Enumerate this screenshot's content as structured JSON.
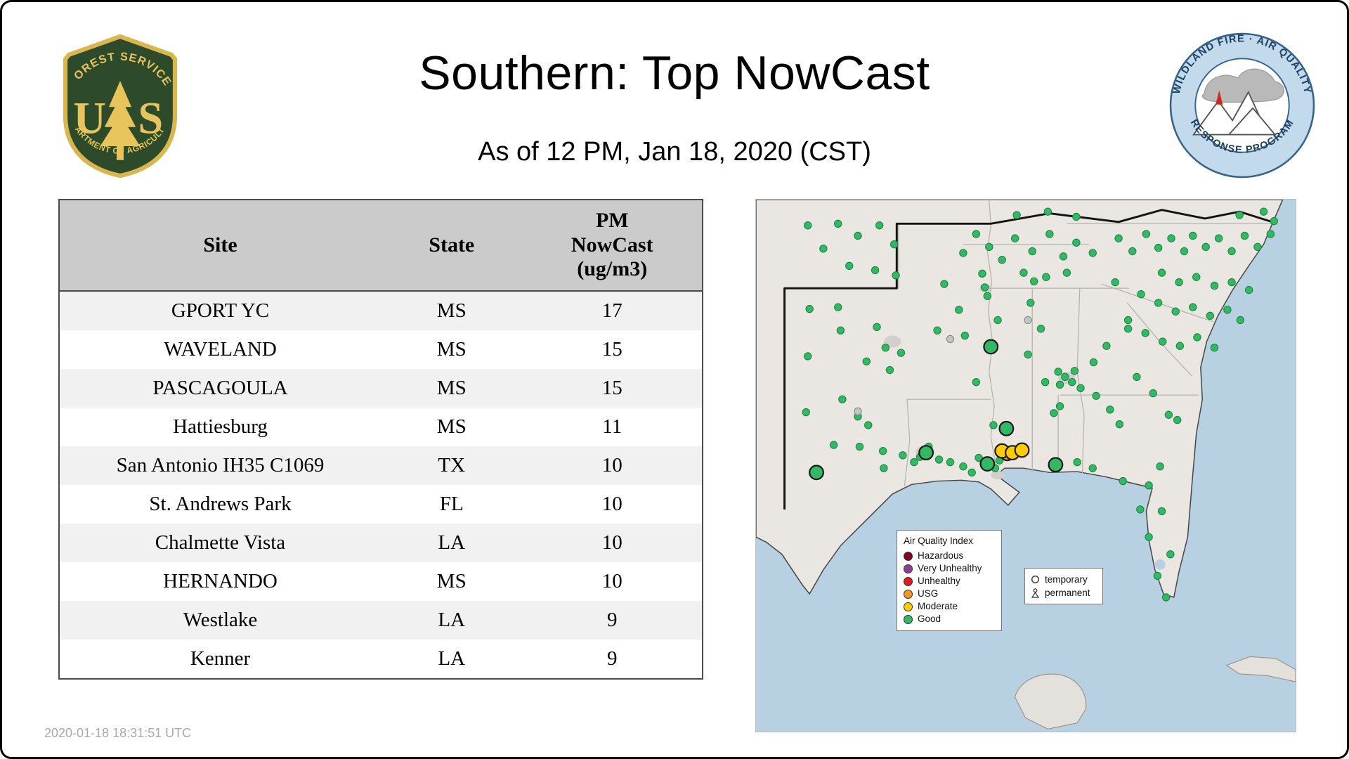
{
  "header": {
    "title": "Southern: Top NowCast",
    "subtitle": "As of 12 PM, Jan 18, 2020 (CST)",
    "usfs_logo": {
      "arc_top": "FOREST SERVICE",
      "letter_left": "U",
      "letter_right": "S",
      "arc_bottom": "DEPARTMENT OF AGRICULTURE"
    },
    "program_logo": {
      "arc_top": "WILDLAND FIRE · AIR QUALITY",
      "arc_bottom": "RESPONSE PROGRAM"
    }
  },
  "table": {
    "columns": {
      "site": "Site",
      "state": "State",
      "pm": "PM\nNowCast\n(ug/m3)"
    },
    "rows": [
      {
        "site": "GPORT YC",
        "state": "MS",
        "value": "17"
      },
      {
        "site": "WAVELAND",
        "state": "MS",
        "value": "15"
      },
      {
        "site": "PASCAGOULA",
        "state": "MS",
        "value": "15"
      },
      {
        "site": "Hattiesburg",
        "state": "MS",
        "value": "11"
      },
      {
        "site": "San Antonio IH35 C1069",
        "state": "TX",
        "value": "10"
      },
      {
        "site": "St. Andrews Park",
        "state": "FL",
        "value": "10"
      },
      {
        "site": "Chalmette Vista",
        "state": "LA",
        "value": "10"
      },
      {
        "site": "HERNANDO",
        "state": "MS",
        "value": "10"
      },
      {
        "site": "Westlake",
        "state": "LA",
        "value": "9"
      },
      {
        "site": "Kenner",
        "state": "LA",
        "value": "9"
      }
    ]
  },
  "map": {
    "colors": {
      "g": "#33b864",
      "m": "#ffcc00",
      "u": "#f7941d",
      "x": "#c4c4c4"
    },
    "strokes": {
      "g": "#1e8746",
      "m": "#b38f00",
      "u": "#b36200",
      "x": "#8a8a8a"
    },
    "legend_aqi": {
      "title": "Air Quality Index",
      "items": [
        {
          "label": "Hazardous",
          "color": "#7e0023"
        },
        {
          "label": "Very Unhealthy",
          "color": "#8f3f97"
        },
        {
          "label": "Unhealthy",
          "color": "#e31a1c"
        },
        {
          "label": "USG",
          "color": "#f7941d"
        },
        {
          "label": "Moderate",
          "color": "#ffcc00"
        },
        {
          "label": "Good",
          "color": "#33b864"
        }
      ]
    },
    "legend_type": {
      "items": [
        {
          "label": "temporary",
          "icon": "circle"
        },
        {
          "label": "permanent",
          "icon": "person"
        }
      ]
    },
    "points": [
      [
        95,
        28,
        "g"
      ],
      [
        118,
        42,
        "g"
      ],
      [
        143,
        30,
        "g"
      ],
      [
        160,
        52,
        "g"
      ],
      [
        78,
        57,
        "g"
      ],
      [
        108,
        77,
        "g"
      ],
      [
        138,
        82,
        "g"
      ],
      [
        162,
        88,
        "g"
      ],
      [
        60,
        30,
        "g"
      ],
      [
        62,
        127,
        "g"
      ],
      [
        95,
        125,
        "g"
      ],
      [
        98,
        152,
        "g"
      ],
      [
        140,
        148,
        "g"
      ],
      [
        150,
        172,
        "g"
      ],
      [
        168,
        178,
        "g"
      ],
      [
        128,
        188,
        "g"
      ],
      [
        155,
        198,
        "g"
      ],
      [
        60,
        182,
        "g"
      ],
      [
        58,
        247,
        "g"
      ],
      [
        100,
        232,
        "g"
      ],
      [
        118,
        252,
        "g"
      ],
      [
        130,
        262,
        "g"
      ],
      [
        90,
        285,
        "g"
      ],
      [
        120,
        287,
        "g"
      ],
      [
        147,
        292,
        "g"
      ],
      [
        170,
        297,
        "g"
      ],
      [
        190,
        299,
        "g"
      ],
      [
        200,
        287,
        "g"
      ],
      [
        212,
        302,
        "g"
      ],
      [
        148,
        312,
        "g"
      ],
      [
        183,
        305,
        "g"
      ],
      [
        70,
        317,
        "g",
        "l"
      ],
      [
        225,
        162,
        "x"
      ],
      [
        118,
        246,
        "x"
      ],
      [
        315,
        140,
        "x"
      ],
      [
        218,
        98,
        "g"
      ],
      [
        235,
        128,
        "g"
      ],
      [
        210,
        152,
        "g"
      ],
      [
        242,
        158,
        "g"
      ],
      [
        225,
        305,
        "g"
      ],
      [
        240,
        310,
        "g"
      ],
      [
        258,
        300,
        "g"
      ],
      [
        250,
        317,
        "g"
      ],
      [
        277,
        312,
        "g"
      ],
      [
        282,
        303,
        "g"
      ],
      [
        197,
        294,
        "g",
        "l"
      ],
      [
        268,
        307,
        "g",
        "l"
      ],
      [
        291,
        295,
        "u",
        "l"
      ],
      [
        285,
        292,
        "m",
        "l"
      ],
      [
        297,
        294,
        "m",
        "l"
      ],
      [
        308,
        291,
        "m",
        "l"
      ],
      [
        272,
        171,
        "g",
        "l"
      ],
      [
        255,
        212,
        "g"
      ],
      [
        275,
        262,
        "g"
      ],
      [
        268,
        112,
        "g"
      ],
      [
        262,
        86,
        "g"
      ],
      [
        280,
        140,
        "g"
      ],
      [
        290,
        266,
        "g",
        "l"
      ],
      [
        318,
        120,
        "g"
      ],
      [
        330,
        150,
        "g"
      ],
      [
        315,
        180,
        "g"
      ],
      [
        335,
        212,
        "g"
      ],
      [
        345,
        248,
        "g"
      ],
      [
        322,
        95,
        "g"
      ],
      [
        347,
        308,
        "g",
        "l"
      ],
      [
        372,
        305,
        "g"
      ],
      [
        390,
        312,
        "g"
      ],
      [
        350,
        200,
        "g"
      ],
      [
        358,
        206,
        "g"
      ],
      [
        366,
        212,
        "g"
      ],
      [
        352,
        215,
        "g"
      ],
      [
        369,
        199,
        "g"
      ],
      [
        376,
        219,
        "g"
      ],
      [
        394,
        228,
        "g"
      ],
      [
        410,
        244,
        "g"
      ],
      [
        421,
        261,
        "g"
      ],
      [
        391,
        189,
        "g"
      ],
      [
        406,
        170,
        "g"
      ],
      [
        431,
        150,
        "g"
      ],
      [
        352,
        240,
        "g"
      ],
      [
        441,
        206,
        "g"
      ],
      [
        478,
        250,
        "g"
      ],
      [
        460,
        225,
        "g"
      ],
      [
        270,
        55,
        "g"
      ],
      [
        285,
        70,
        "g"
      ],
      [
        300,
        45,
        "g"
      ],
      [
        320,
        60,
        "g"
      ],
      [
        340,
        40,
        "g"
      ],
      [
        356,
        66,
        "g"
      ],
      [
        371,
        50,
        "g"
      ],
      [
        390,
        62,
        "g"
      ],
      [
        310,
        85,
        "g"
      ],
      [
        336,
        90,
        "g"
      ],
      [
        360,
        85,
        "g"
      ],
      [
        255,
        40,
        "g"
      ],
      [
        240,
        62,
        "g"
      ],
      [
        265,
        102,
        "g"
      ],
      [
        302,
        18,
        "g"
      ],
      [
        338,
        14,
        "g"
      ],
      [
        371,
        20,
        "g"
      ],
      [
        420,
        45,
        "g"
      ],
      [
        436,
        60,
        "g"
      ],
      [
        452,
        40,
        "g"
      ],
      [
        466,
        56,
        "g"
      ],
      [
        481,
        45,
        "g"
      ],
      [
        496,
        60,
        "g"
      ],
      [
        506,
        42,
        "g"
      ],
      [
        521,
        55,
        "g"
      ],
      [
        536,
        45,
        "g"
      ],
      [
        551,
        60,
        "g"
      ],
      [
        566,
        42,
        "g"
      ],
      [
        581,
        55,
        "g"
      ],
      [
        596,
        40,
        "g"
      ],
      [
        470,
        85,
        "g"
      ],
      [
        490,
        96,
        "g"
      ],
      [
        510,
        90,
        "g"
      ],
      [
        531,
        100,
        "g"
      ],
      [
        551,
        96,
        "g"
      ],
      [
        571,
        105,
        "g"
      ],
      [
        446,
        110,
        "g"
      ],
      [
        466,
        120,
        "g"
      ],
      [
        486,
        130,
        "g"
      ],
      [
        506,
        125,
        "g"
      ],
      [
        526,
        135,
        "g"
      ],
      [
        546,
        128,
        "g"
      ],
      [
        561,
        140,
        "g"
      ],
      [
        431,
        140,
        "g"
      ],
      [
        451,
        155,
        "g"
      ],
      [
        471,
        165,
        "g"
      ],
      [
        491,
        170,
        "g"
      ],
      [
        511,
        160,
        "g"
      ],
      [
        531,
        172,
        "g"
      ],
      [
        416,
        96,
        "g"
      ],
      [
        600,
        25,
        "g"
      ],
      [
        588,
        14,
        "g"
      ],
      [
        560,
        18,
        "g"
      ],
      [
        455,
        332,
        "g"
      ],
      [
        470,
        362,
        "g"
      ],
      [
        455,
        392,
        "g"
      ],
      [
        480,
        412,
        "g"
      ],
      [
        465,
        437,
        "g"
      ],
      [
        475,
        462,
        "g"
      ],
      [
        425,
        327,
        "g"
      ],
      [
        488,
        256,
        "g"
      ],
      [
        468,
        310,
        "g"
      ],
      [
        445,
        360,
        "g"
      ]
    ]
  },
  "footer": {
    "timestamp": "2020-01-18 18:31:51 UTC"
  }
}
